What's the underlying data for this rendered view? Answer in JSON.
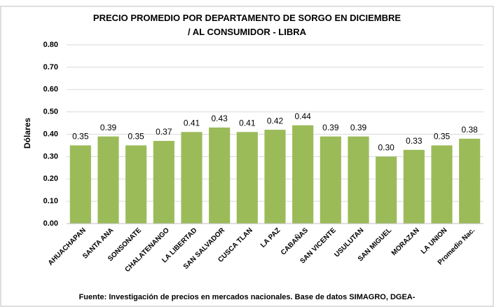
{
  "chart_data": {
    "type": "bar",
    "title": "PRECIO PROMEDIO POR DEPARTAMENTO DE SORGO EN DICIEMBRE / AL CONSUMIDOR - LIBRA",
    "y_label": "Dólares",
    "source": "Fuente: Investigación de precios en mercados nacionales. Base de datos SIMAGRO, DGEA-",
    "categories": [
      "AHUACHAPAN",
      "SANTA ANA",
      "SONSONATE",
      "CHALATENANGO",
      "LA LIBERTAD",
      "SAN SALVADOR",
      "CUSCA TLAN",
      "LA PAZ",
      "CABAÑAS",
      "SAN VICENTE",
      "USULUTAN",
      "SAN MIGUEL",
      "MORAZAN",
      "LA UNION",
      "Promedio Nac."
    ],
    "values": [
      0.35,
      0.39,
      0.35,
      0.37,
      0.41,
      0.43,
      0.41,
      0.42,
      0.44,
      0.39,
      0.39,
      0.3,
      0.33,
      0.35,
      0.38
    ],
    "value_labels": [
      "0.35",
      "0.39",
      "0.35",
      "0.37",
      "0.41",
      "0.43",
      "0.41",
      "0.42",
      "0.44",
      "0.39",
      "0.39",
      "0.30",
      "0.33",
      "0.35",
      "0.38"
    ],
    "color": "#9bbb59",
    "ylim": [
      0,
      0.8
    ],
    "yticks": [
      {
        "value": 0,
        "label": "0.00"
      },
      {
        "value": 0.1,
        "label": "0.10"
      },
      {
        "value": 0.2,
        "label": "0.20"
      },
      {
        "value": 0.3,
        "label": "0.30"
      },
      {
        "value": 0.4,
        "label": "0.40"
      },
      {
        "value": 0.5,
        "label": "0.50"
      },
      {
        "value": 0.6,
        "label": "0.60"
      },
      {
        "value": 0.7,
        "label": "0.70"
      },
      {
        "value": 0.8,
        "label": "0.80"
      }
    ],
    "grid": true
  }
}
